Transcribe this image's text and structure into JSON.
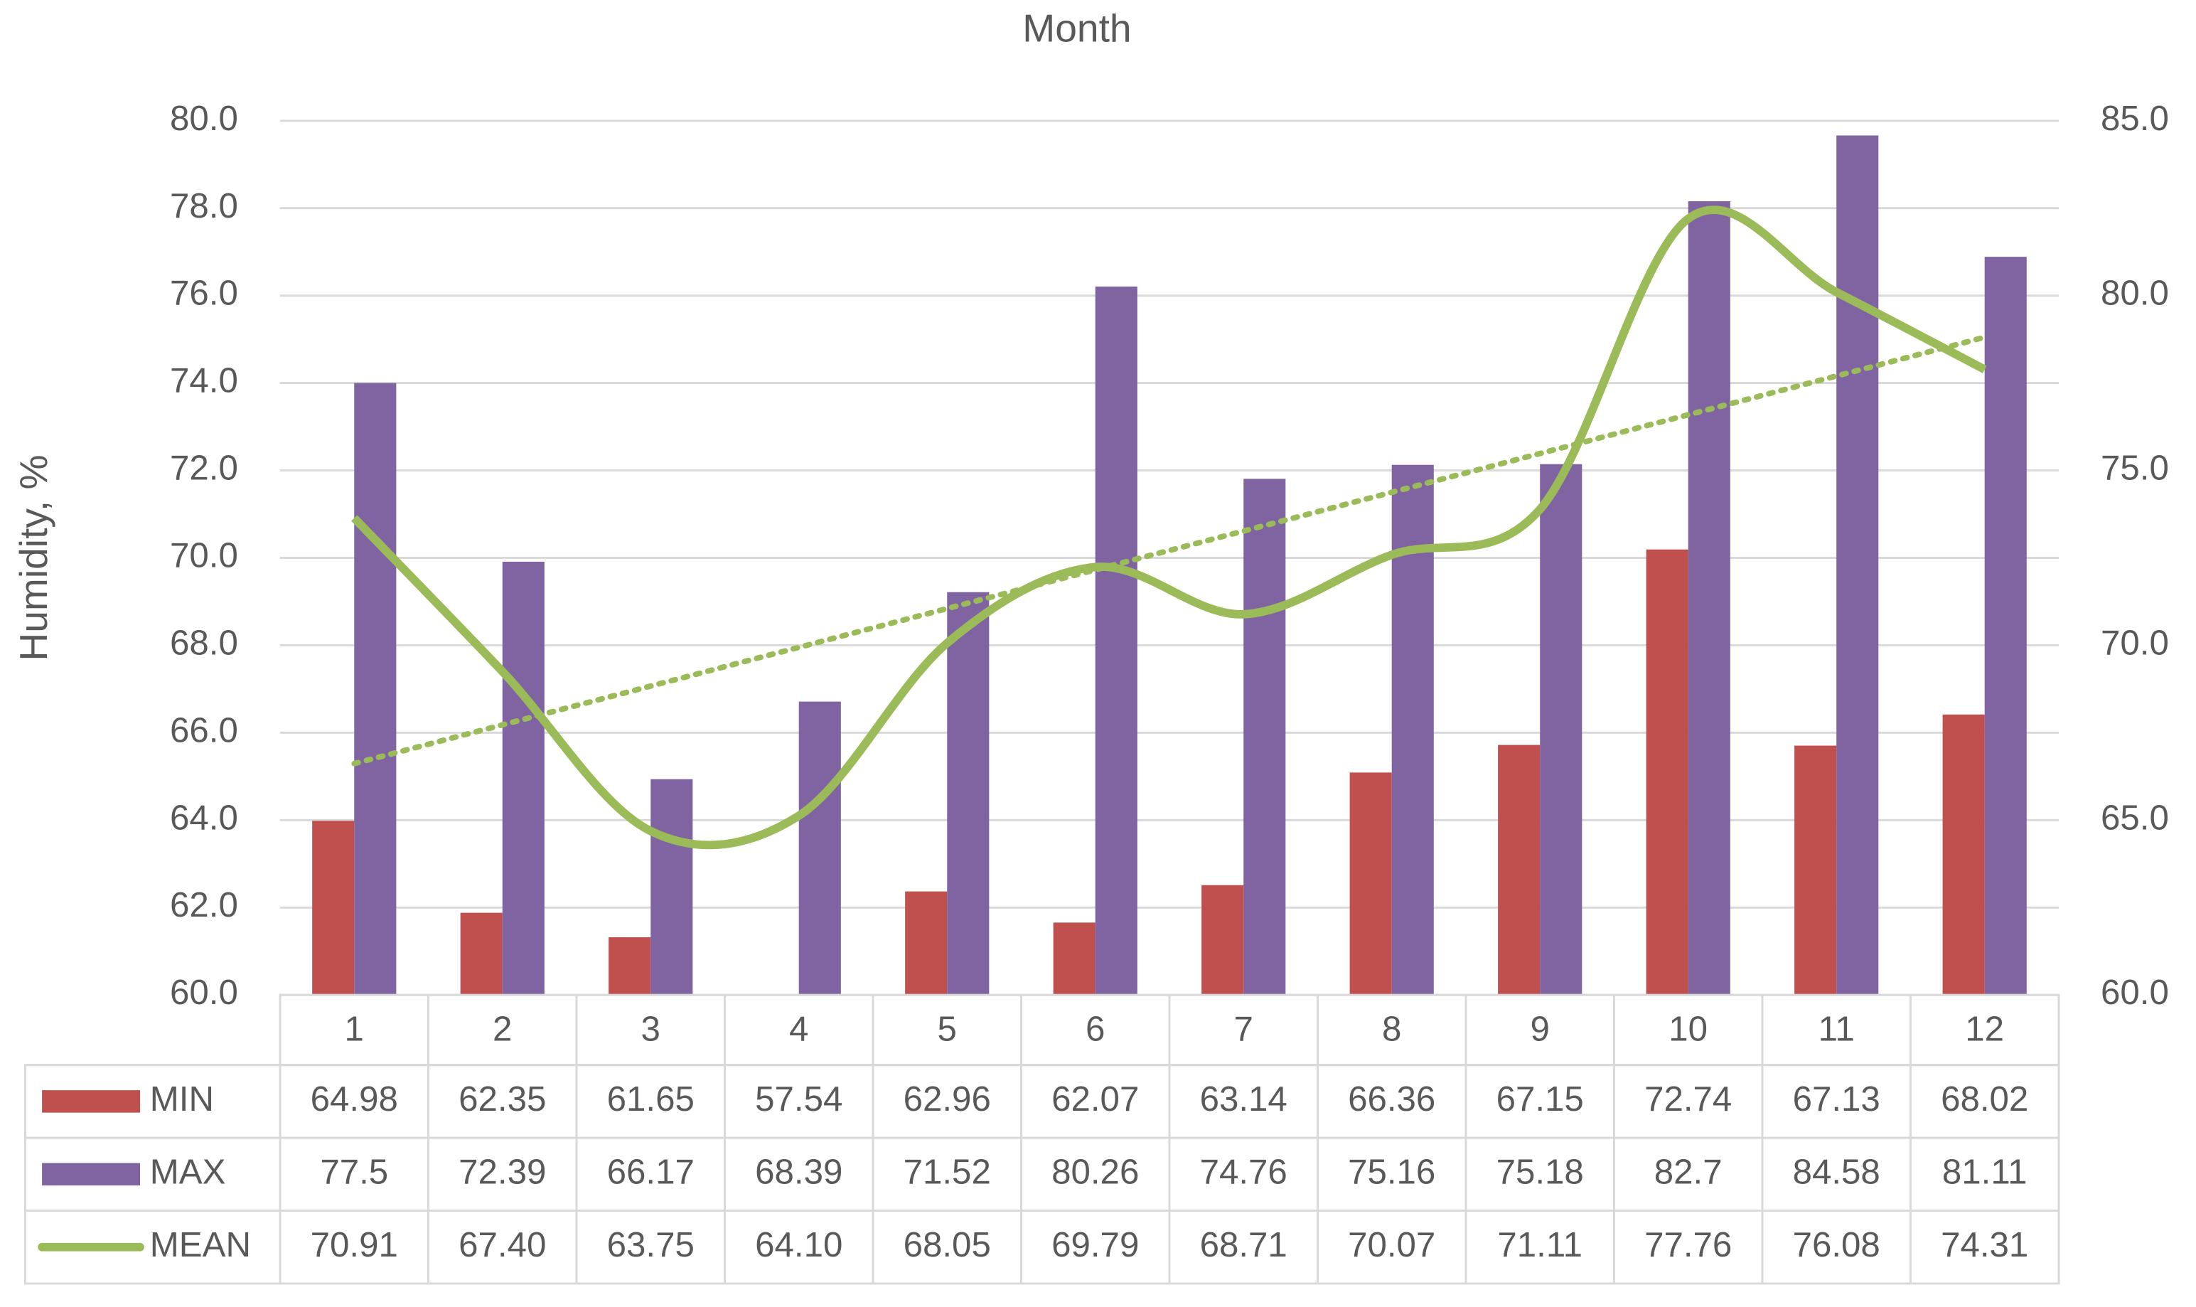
{
  "chart_data": {
    "type": "bar_line_table",
    "title": "Month",
    "y_label": "Humidity, %",
    "categories": [
      "1",
      "2",
      "3",
      "4",
      "5",
      "6",
      "7",
      "8",
      "9",
      "10",
      "11",
      "12"
    ],
    "series": [
      {
        "name": "MIN",
        "color": "#c0504d",
        "type": "bar",
        "axis": "y2",
        "values": [
          64.98,
          62.35,
          61.65,
          57.54,
          62.96,
          62.07,
          63.14,
          66.36,
          67.15,
          72.74,
          67.13,
          68.02
        ]
      },
      {
        "name": "MAX",
        "color": "#8064a2",
        "type": "bar",
        "axis": "y2",
        "values": [
          77.5,
          72.39,
          66.17,
          68.39,
          71.52,
          80.26,
          74.76,
          75.16,
          75.18,
          82.7,
          84.58,
          81.11
        ]
      },
      {
        "name": "MEAN",
        "color": "#9bbb59",
        "type": "line",
        "smooth": true,
        "trendline": "linear",
        "values": [
          70.91,
          67.4,
          63.75,
          64.1,
          68.05,
          69.79,
          68.71,
          70.07,
          71.11,
          77.76,
          76.08,
          74.31
        ],
        "value_labels": [
          "70.91",
          "67.40",
          "63.75",
          "64.10",
          "68.05",
          "69.79",
          "68.71",
          "70.07",
          "71.11",
          "77.76",
          "76.08",
          "74.31"
        ]
      }
    ],
    "ylim": [
      60,
      80
    ],
    "yticks": [
      {
        "value": 60,
        "label": "60.0"
      },
      {
        "value": 62,
        "label": "62.0"
      },
      {
        "value": 64,
        "label": "64.0"
      },
      {
        "value": 66,
        "label": "66.0"
      },
      {
        "value": 68,
        "label": "68.0"
      },
      {
        "value": 70,
        "label": "70.0"
      },
      {
        "value": 72,
        "label": "72.0"
      },
      {
        "value": 74,
        "label": "74.0"
      },
      {
        "value": 76,
        "label": "76.0"
      },
      {
        "value": 78,
        "label": "78.0"
      },
      {
        "value": 80,
        "label": "80.0"
      }
    ],
    "y2lim": [
      60,
      85
    ],
    "y2ticks": [
      {
        "value": 60,
        "label": "60.0"
      },
      {
        "value": 65,
        "label": "65.0"
      },
      {
        "value": 70,
        "label": "70.0"
      },
      {
        "value": 75,
        "label": "75.0"
      },
      {
        "value": 80,
        "label": "80.0"
      },
      {
        "value": 85,
        "label": "85.0"
      }
    ],
    "grid": true,
    "data_table": true
  }
}
